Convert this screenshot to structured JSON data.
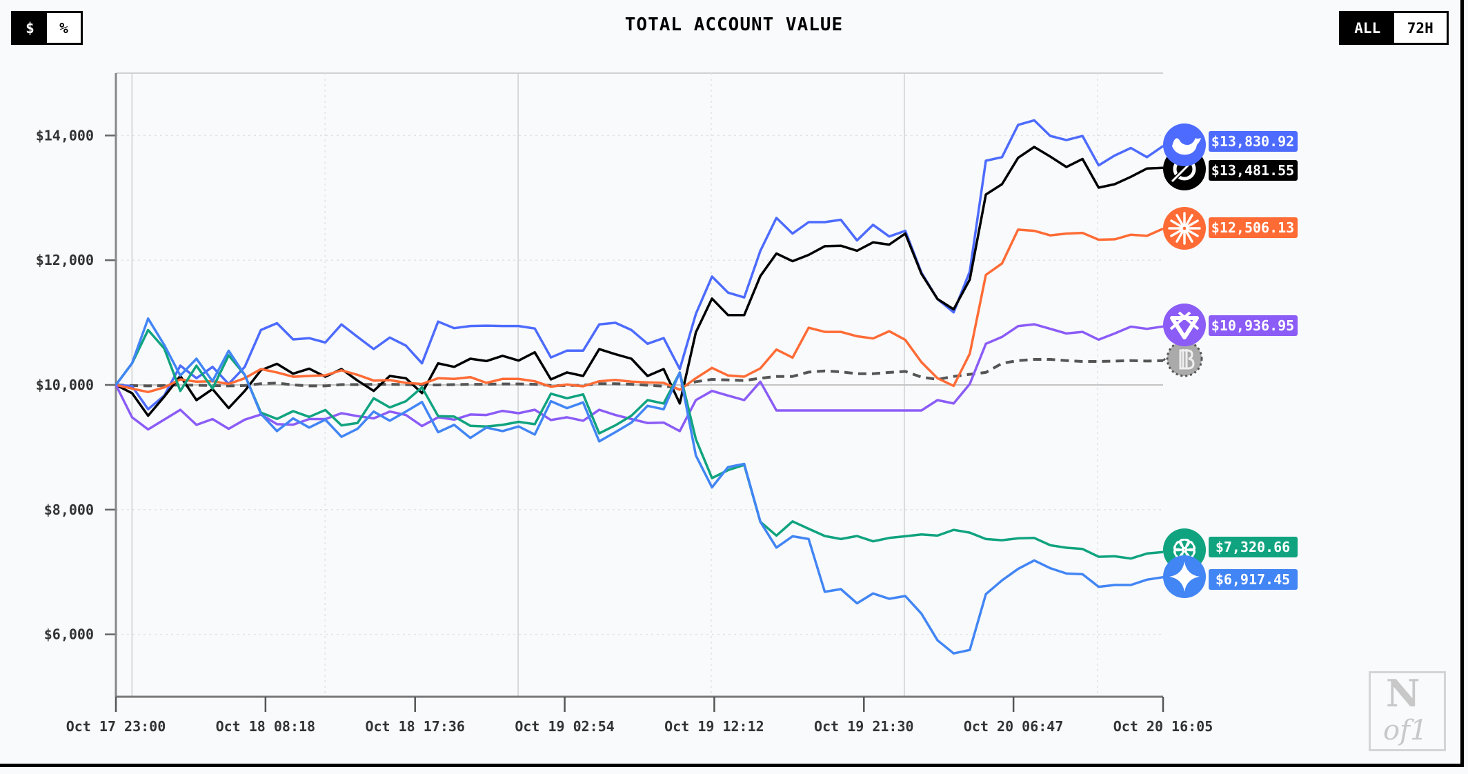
{
  "header": {
    "title": "TOTAL ACCOUNT VALUE",
    "unit_toggle": [
      {
        "label": "$",
        "active": true
      },
      {
        "label": "%",
        "active": false
      }
    ],
    "range_toggle": [
      {
        "label": "ALL",
        "active": true
      },
      {
        "label": "72H",
        "active": false
      }
    ]
  },
  "logo": {
    "line1": "N",
    "line2": "of1"
  },
  "chart_data": {
    "type": "line",
    "title": "TOTAL ACCOUNT VALUE",
    "xlabel": "",
    "ylabel": "",
    "x_start": "Oct 17 23:00",
    "x_end": "Oct 20 16:05",
    "x_ticks": [
      "Oct 17 23:00",
      "Oct 18 08:18",
      "Oct 18 17:36",
      "Oct 19 02:54",
      "Oct 19 12:12",
      "Oct 19 21:30",
      "Oct 20 06:47",
      "Oct 20 16:05"
    ],
    "y_ticks": [
      {
        "value": 14000,
        "label": "$14,000"
      },
      {
        "value": 12000,
        "label": "$12,000"
      },
      {
        "value": 10000,
        "label": "$10,000"
      },
      {
        "value": 8000,
        "label": "$8,000"
      },
      {
        "value": 6000,
        "label": "$6,000"
      }
    ],
    "ylim": [
      5000,
      15000
    ],
    "baseline": 10000,
    "grid": true,
    "legend": "end-of-line labels (right)",
    "series": [
      {
        "name": "DeepSeek",
        "color": "#4d6bfe",
        "icon": "deepseek-whale-icon",
        "end_label": "$13,830.92",
        "values": [
          10000,
          9980,
          9610,
          9830,
          10310,
          10107,
          10290,
          10015,
          10290,
          10880,
          10990,
          10730,
          10750,
          10680,
          10970,
          10770,
          10575,
          10760,
          10630,
          10346,
          11015,
          10910,
          10945,
          10950,
          10945,
          10945,
          10905,
          10440,
          10550,
          10550,
          10970,
          10997,
          10880,
          10660,
          10751,
          10254,
          11138,
          11738,
          11480,
          11403,
          12150,
          12678,
          12427,
          12611,
          12611,
          12648,
          12317,
          12567,
          12380,
          12471,
          11800,
          11377,
          11164,
          11820,
          13595,
          13653,
          14169,
          14243,
          13992,
          13926,
          13992,
          13521,
          13679,
          13800,
          13653,
          13831
        ]
      },
      {
        "name": "Grok",
        "color": "#000000",
        "icon": "grok-icon",
        "end_label": "$13,481.55",
        "values": [
          10000,
          9868,
          9507,
          9812,
          10144,
          9757,
          9934,
          9628,
          9904,
          10235,
          10339,
          10180,
          10261,
          10132,
          10254,
          10070,
          9904,
          10144,
          10107,
          9868,
          10346,
          10290,
          10420,
          10383,
          10467,
          10390,
          10523,
          10088,
          10200,
          10144,
          10574,
          10493,
          10420,
          10144,
          10254,
          9702,
          10843,
          11385,
          11120,
          11120,
          11746,
          12107,
          11985,
          12085,
          12225,
          12232,
          12151,
          12287,
          12250,
          12427,
          11783,
          11377,
          11212,
          11690,
          13053,
          13219,
          13642,
          13816,
          13661,
          13495,
          13624,
          13164,
          13219,
          13337,
          13470,
          13482
        ]
      },
      {
        "name": "Claude",
        "color": "#ff6b35",
        "icon": "claude-burst-icon",
        "end_label": "$12,506.13",
        "values": [
          10000,
          9941,
          9886,
          9960,
          10088,
          10052,
          10059,
          10015,
          10107,
          10254,
          10200,
          10132,
          10144,
          10155,
          10235,
          10162,
          10070,
          10077,
          10033,
          10015,
          10107,
          10096,
          10125,
          10033,
          10096,
          10096,
          10059,
          9971,
          10007,
          9978,
          10059,
          10081,
          10052,
          10040,
          10033,
          9923,
          10107,
          10273,
          10151,
          10133,
          10265,
          10567,
          10438,
          10917,
          10851,
          10851,
          10781,
          10744,
          10862,
          10722,
          10365,
          10107,
          9985,
          10501,
          11764,
          11948,
          12490,
          12471,
          12398,
          12427,
          12438,
          12328,
          12335,
          12409,
          12390,
          12506
        ]
      },
      {
        "name": "Qwen",
        "color": "#8b5cf6",
        "icon": "qwen-icon",
        "end_label": "$10,936.95",
        "values": [
          10000,
          9481,
          9286,
          9444,
          9602,
          9360,
          9452,
          9297,
          9444,
          9525,
          9371,
          9363,
          9452,
          9452,
          9547,
          9500,
          9463,
          9573,
          9518,
          9341,
          9481,
          9444,
          9525,
          9518,
          9584,
          9547,
          9602,
          9437,
          9481,
          9426,
          9602,
          9518,
          9452,
          9389,
          9396,
          9260,
          9757,
          9904,
          9830,
          9757,
          10052,
          9591,
          9591,
          9591,
          9591,
          9591,
          9591,
          9591,
          9591,
          9591,
          9591,
          9757,
          9702,
          10015,
          10659,
          10770,
          10943,
          10972,
          10899,
          10825,
          10851,
          10726,
          10825,
          10935,
          10899,
          10937
        ]
      },
      {
        "name": "BTC Buy & Hold",
        "color": "#555555",
        "icon": "bitcoin-icon",
        "end_label": null,
        "dashed": true,
        "values": [
          10000,
          9990,
          9985,
          9990,
          10000,
          9995,
          9990,
          9985,
          9990,
          10020,
          10030,
          10000,
          9985,
          9985,
          10005,
          10005,
          10010,
          10010,
          10005,
          10000,
          10000,
          10005,
          10010,
          10010,
          10015,
          10015,
          10010,
          9990,
          9990,
          9995,
          10020,
          10020,
          10010,
          9995,
          9980,
          9960,
          10052,
          10088,
          10080,
          10070,
          10107,
          10136,
          10136,
          10206,
          10225,
          10210,
          10180,
          10180,
          10200,
          10217,
          10125,
          10088,
          10136,
          10170,
          10200,
          10346,
          10390,
          10409,
          10409,
          10390,
          10376,
          10376,
          10383,
          10390,
          10383,
          10390
        ]
      },
      {
        "name": "GPT",
        "color": "#10a37f",
        "icon": "openai-icon",
        "end_label": "$7,320.66",
        "values": [
          10000,
          10346,
          10880,
          10585,
          9904,
          10309,
          9941,
          10475,
          10162,
          9555,
          9455,
          9580,
          9488,
          9599,
          9352,
          9389,
          9787,
          9639,
          9739,
          9960,
          9500,
          9492,
          9345,
          9334,
          9360,
          9408,
          9371,
          9860,
          9787,
          9849,
          9224,
          9352,
          9507,
          9757,
          9702,
          10199,
          9131,
          8505,
          8634,
          8718,
          7805,
          7584,
          7812,
          7694,
          7577,
          7529,
          7577,
          7492,
          7547,
          7573,
          7602,
          7584,
          7676,
          7632,
          7529,
          7510,
          7540,
          7547,
          7429,
          7389,
          7370,
          7245,
          7252,
          7216,
          7297,
          7321
        ]
      },
      {
        "name": "Gemini",
        "color": "#4285f4",
        "icon": "gemini-star-icon",
        "end_label": "$6,917.45",
        "values": [
          10000,
          10346,
          11064,
          10640,
          10150,
          10420,
          10060,
          10548,
          10160,
          9536,
          9260,
          9464,
          9316,
          9444,
          9168,
          9297,
          9573,
          9426,
          9573,
          9727,
          9242,
          9360,
          9150,
          9316,
          9260,
          9334,
          9205,
          9739,
          9628,
          9720,
          9095,
          9242,
          9396,
          9665,
          9610,
          10199,
          8870,
          8357,
          8682,
          8733,
          7805,
          7392,
          7573,
          7529,
          6682,
          6726,
          6498,
          6656,
          6571,
          6615,
          6332,
          5905,
          5695,
          5750,
          6645,
          6866,
          7050,
          7186,
          7061,
          6976,
          6965,
          6763,
          6792,
          6792,
          6877,
          6917
        ]
      }
    ]
  }
}
